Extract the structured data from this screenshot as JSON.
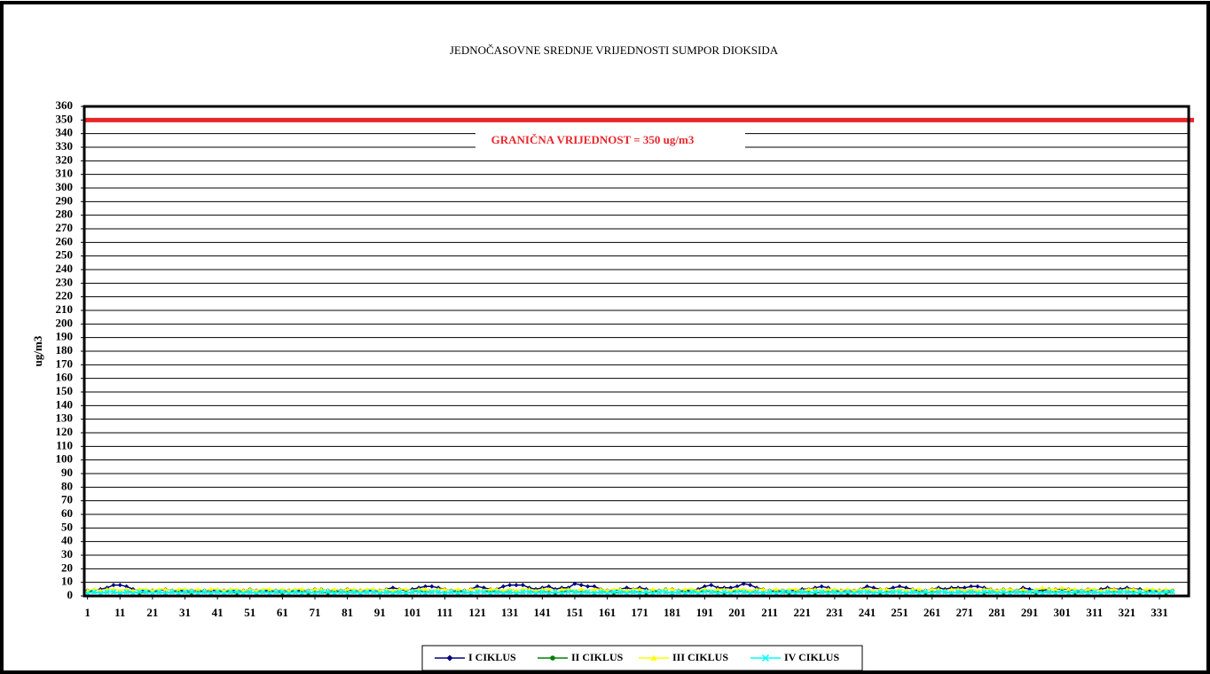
{
  "chart_data": {
    "type": "line",
    "title": "JEDNOČASOVNE SREDNJE VRIJEDNOSTI SUMPOR DIOKSIDA",
    "ylabel": "ug/m3",
    "xlim": [
      0,
      340
    ],
    "ylim": [
      0,
      360
    ],
    "xticks": [
      1,
      11,
      21,
      31,
      41,
      51,
      61,
      71,
      81,
      91,
      101,
      111,
      121,
      131,
      141,
      151,
      161,
      171,
      181,
      191,
      201,
      211,
      221,
      231,
      241,
      251,
      261,
      271,
      281,
      291,
      301,
      311,
      321,
      331
    ],
    "yticks": [
      0,
      10,
      20,
      30,
      40,
      50,
      60,
      70,
      80,
      90,
      100,
      110,
      120,
      130,
      140,
      150,
      160,
      170,
      180,
      190,
      200,
      210,
      220,
      230,
      240,
      250,
      260,
      270,
      280,
      290,
      300,
      310,
      320,
      330,
      340,
      350,
      360
    ],
    "grid": true,
    "limit": {
      "value": 350,
      "label": "GRANIČNA VRIJEDNOST = 350 ug/m3",
      "color": "#e8262a"
    },
    "legend": "bottom",
    "x": [
      1,
      3,
      5,
      7,
      9,
      11,
      13,
      15,
      17,
      19,
      21,
      23,
      25,
      27,
      29,
      31,
      33,
      35,
      37,
      39,
      41,
      43,
      45,
      47,
      49,
      51,
      53,
      55,
      57,
      59,
      61,
      63,
      65,
      67,
      69,
      71,
      73,
      75,
      77,
      79,
      81,
      83,
      85,
      87,
      89,
      91,
      93,
      95,
      97,
      99,
      101,
      103,
      105,
      107,
      109,
      111,
      113,
      115,
      117,
      119,
      121,
      123,
      125,
      127,
      129,
      131,
      133,
      135,
      137,
      139,
      141,
      143,
      145,
      147,
      149,
      151,
      153,
      155,
      157,
      159,
      161,
      163,
      165,
      167,
      169,
      171,
      173,
      175,
      177,
      179,
      181,
      183,
      185,
      187,
      189,
      191,
      193,
      195,
      197,
      199,
      201,
      203,
      205,
      207,
      209,
      211,
      213,
      215,
      217,
      219,
      221,
      223,
      225,
      227,
      229,
      231,
      233,
      235,
      237,
      239,
      241,
      243,
      245,
      247,
      249,
      251,
      253,
      255,
      257,
      259,
      261,
      263,
      265,
      267,
      269,
      271,
      273,
      275,
      277,
      279,
      281,
      283,
      285,
      287,
      289,
      291,
      293,
      295,
      297,
      299,
      301,
      303,
      305,
      307,
      309,
      311,
      313,
      315,
      317,
      319,
      321,
      323,
      325,
      327,
      329,
      331,
      333,
      335
    ],
    "series": [
      {
        "name": "I CIKLUS",
        "color": "#000080",
        "marker": "diamond",
        "values": [
          4,
          4,
          5,
          6,
          8,
          8,
          7,
          5,
          4,
          4,
          4,
          4,
          5,
          4,
          4,
          4,
          4,
          4,
          4,
          4,
          4,
          4,
          4,
          4,
          4,
          5,
          4,
          4,
          4,
          4,
          4,
          4,
          4,
          4,
          4,
          5,
          5,
          4,
          4,
          4,
          5,
          4,
          4,
          4,
          4,
          4,
          5,
          6,
          5,
          4,
          5,
          6,
          7,
          7,
          6,
          5,
          4,
          4,
          4,
          5,
          7,
          6,
          5,
          5,
          7,
          8,
          8,
          8,
          6,
          5,
          6,
          7,
          5,
          6,
          6,
          9,
          8,
          7,
          7,
          5,
          4,
          4,
          5,
          6,
          5,
          6,
          5,
          4,
          4,
          5,
          5,
          4,
          4,
          4,
          5,
          7,
          8,
          6,
          6,
          6,
          7,
          9,
          8,
          6,
          5,
          4,
          4,
          4,
          4,
          4,
          5,
          5,
          6,
          7,
          6,
          4,
          4,
          4,
          4,
          5,
          7,
          6,
          5,
          5,
          6,
          7,
          6,
          5,
          4,
          4,
          5,
          6,
          5,
          6,
          6,
          6,
          7,
          7,
          6,
          5,
          4,
          5,
          5,
          4,
          6,
          5,
          4,
          4,
          5,
          5,
          5,
          5,
          4,
          4,
          5,
          4,
          5,
          6,
          5,
          5,
          6,
          5,
          5,
          4,
          4,
          4,
          4,
          4
        ]
      },
      {
        "name": "II CIKLUS",
        "color": "#008000",
        "marker": "circle",
        "values": [
          3,
          3,
          2,
          3,
          3,
          2,
          3,
          3,
          2,
          3,
          3,
          3,
          2,
          3,
          3,
          3,
          2,
          3,
          3,
          2,
          3,
          3,
          3,
          2,
          3,
          3,
          2,
          3,
          3,
          3,
          2,
          3,
          3,
          3,
          2,
          3,
          3,
          2,
          3,
          3,
          3,
          3,
          2,
          3,
          3,
          2,
          3,
          3,
          3,
          2,
          3,
          4,
          3,
          3,
          3,
          2,
          3,
          3,
          3,
          2,
          3,
          3,
          4,
          3,
          3,
          3,
          2,
          3,
          3,
          3,
          3,
          3,
          2,
          3,
          4,
          3,
          3,
          3,
          2,
          3,
          3,
          2,
          3,
          3,
          3,
          3,
          2,
          3,
          3,
          3,
          2,
          3,
          3,
          3,
          3,
          4,
          3,
          3,
          2,
          3,
          4,
          3,
          3,
          3,
          2,
          3,
          3,
          3,
          2,
          3,
          3,
          3,
          2,
          3,
          3,
          3,
          3,
          2,
          3,
          3,
          3,
          3,
          2,
          3,
          3,
          3,
          2,
          3,
          3,
          2,
          3,
          3,
          3,
          2,
          3,
          3,
          3,
          3,
          2,
          3,
          3,
          2,
          3,
          3,
          3,
          3,
          2,
          3,
          3,
          3,
          3,
          3,
          2,
          3,
          3,
          3,
          2,
          3,
          3,
          3,
          3,
          3,
          2,
          3,
          3,
          3,
          2,
          3
        ]
      },
      {
        "name": "III CIKLUS",
        "color": "#ffff00",
        "marker": "triangle",
        "values": [
          4,
          5,
          4,
          5,
          5,
          4,
          5,
          4,
          5,
          5,
          4,
          5,
          5,
          4,
          5,
          5,
          4,
          5,
          4,
          5,
          5,
          4,
          5,
          5,
          4,
          5,
          4,
          5,
          5,
          4,
          5,
          4,
          5,
          5,
          4,
          5,
          5,
          4,
          5,
          4,
          5,
          5,
          4,
          5,
          5,
          4,
          5,
          4,
          5,
          5,
          4,
          5,
          5,
          4,
          5,
          5,
          4,
          5,
          4,
          5,
          5,
          4,
          5,
          5,
          4,
          5,
          4,
          5,
          5,
          4,
          5,
          5,
          4,
          5,
          5,
          4,
          5,
          4,
          5,
          5,
          4,
          5,
          5,
          4,
          5,
          5,
          4,
          5,
          4,
          5,
          5,
          4,
          5,
          5,
          4,
          5,
          4,
          5,
          5,
          4,
          5,
          5,
          4,
          5,
          5,
          4,
          5,
          4,
          5,
          5,
          4,
          5,
          5,
          4,
          5,
          5,
          4,
          5,
          4,
          5,
          5,
          4,
          5,
          5,
          4,
          5,
          4,
          5,
          5,
          4,
          5,
          5,
          4,
          5,
          5,
          4,
          5,
          4,
          5,
          5,
          4,
          5,
          5,
          4,
          5,
          3,
          5,
          6,
          5,
          5,
          6,
          5,
          5,
          4,
          5,
          5,
          4,
          5,
          5,
          4,
          5,
          5,
          4,
          5,
          5,
          4,
          5,
          4
        ]
      },
      {
        "name": "IV CIKLUS",
        "color": "#00ffff",
        "marker": "x",
        "values": [
          2,
          3,
          2,
          3,
          3,
          2,
          3,
          2,
          3,
          3,
          2,
          3,
          2,
          3,
          2,
          3,
          3,
          2,
          3,
          2,
          3,
          2,
          3,
          3,
          2,
          3,
          2,
          3,
          2,
          3,
          3,
          2,
          3,
          2,
          3,
          2,
          3,
          3,
          2,
          3,
          2,
          3,
          2,
          3,
          3,
          2,
          3,
          2,
          3,
          2,
          3,
          3,
          2,
          3,
          3,
          2,
          3,
          2,
          3,
          2,
          3,
          3,
          2,
          3,
          2,
          3,
          2,
          3,
          3,
          2,
          3,
          2,
          3,
          2,
          3,
          3,
          2,
          3,
          2,
          3,
          2,
          3,
          3,
          2,
          3,
          2,
          3,
          2,
          3,
          3,
          2,
          3,
          2,
          3,
          2,
          3,
          3,
          2,
          3,
          2,
          3,
          3,
          2,
          3,
          2,
          3,
          2,
          3,
          3,
          2,
          3,
          2,
          3,
          3,
          2,
          3,
          2,
          3,
          2,
          3,
          3,
          2,
          3,
          2,
          3,
          3,
          2,
          3,
          2,
          3,
          2,
          3,
          3,
          2,
          3,
          2,
          3,
          2,
          3,
          3,
          2,
          3,
          2,
          3,
          2,
          3,
          3,
          2,
          3,
          2,
          3,
          2,
          3,
          3,
          2,
          3,
          2,
          3,
          2,
          3,
          3,
          2,
          3,
          2,
          3,
          2,
          3,
          3
        ]
      }
    ]
  }
}
